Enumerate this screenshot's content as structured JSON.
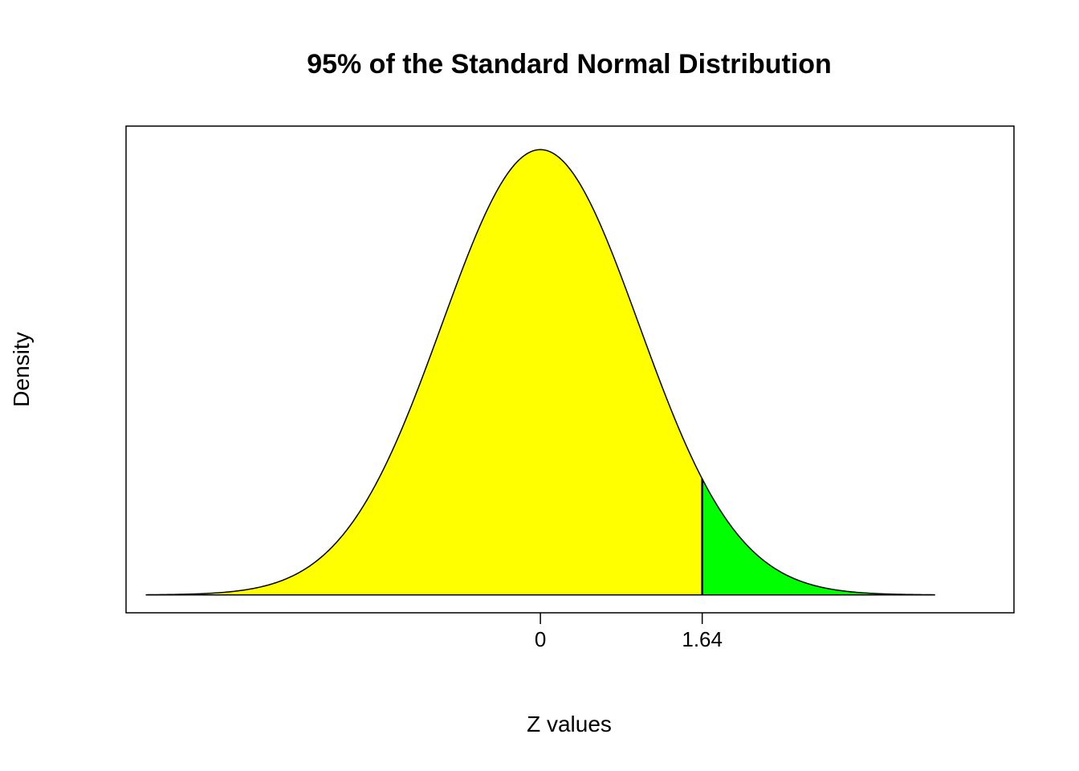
{
  "chart_data": {
    "type": "area",
    "title": "95% of the Standard Normal Distribution",
    "xlabel": "Z values",
    "ylabel": "Density",
    "xlim": [
      -4.2,
      4.8
    ],
    "ylim": [
      -0.016,
      0.42
    ],
    "curve": {
      "distribution": "standard normal",
      "mean": 0,
      "sd": 1,
      "x_range": [
        -4.0,
        4.0
      ]
    },
    "regions": [
      {
        "from": -4.0,
        "to": 1.64,
        "color": "#ffff00"
      },
      {
        "from": 1.64,
        "to": 4.0,
        "color": "#00ff00"
      }
    ],
    "cutoff_line": {
      "x": 1.64
    },
    "x_ticks": [
      {
        "value": 0,
        "label": "0"
      },
      {
        "value": 1.64,
        "label": "1.64"
      }
    ],
    "y_ticks": [],
    "grid": false,
    "legend": "none"
  }
}
